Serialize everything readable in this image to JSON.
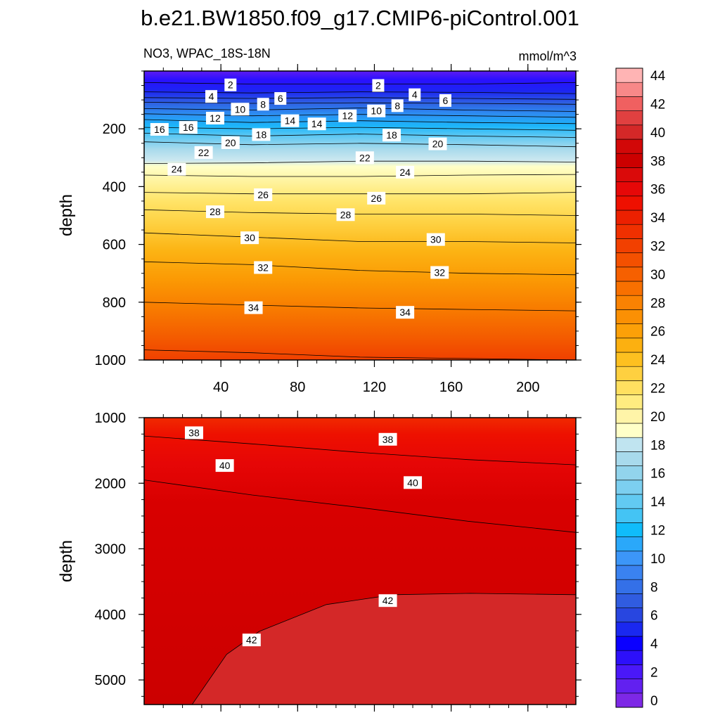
{
  "title": "b.e21.BW1850.f09_g17.CMIP6-piControl.001",
  "subtitle_left": "NO3, WPAC_18S-18N",
  "subtitle_right": "mmol/m^3",
  "chart_data": [
    {
      "type": "heatmap",
      "panel": "upper",
      "ylabel": "depth",
      "xlabel": "",
      "xlim": [
        0,
        225
      ],
      "ylim": [
        1000,
        0
      ],
      "x_ticks": [
        40,
        80,
        120,
        160,
        200
      ],
      "y_ticks": [
        200,
        400,
        600,
        800,
        1000
      ],
      "grid": false,
      "contour_levels": [
        {
          "value": 2,
          "depths": [
            40,
            45,
            45,
            45,
            40
          ]
        },
        {
          "value": 4,
          "depths": [
            72,
            76,
            72,
            74,
            78
          ]
        },
        {
          "value": 6,
          "depths": [
            92,
            95,
            92,
            95,
            98
          ]
        },
        {
          "value": 8,
          "depths": [
            108,
            112,
            110,
            112,
            115
          ]
        },
        {
          "value": 10,
          "depths": [
            130,
            135,
            128,
            135,
            140
          ]
        },
        {
          "value": 12,
          "depths": [
            148,
            155,
            150,
            155,
            160
          ]
        },
        {
          "value": 14,
          "depths": [
            168,
            178,
            172,
            178,
            182
          ]
        },
        {
          "value": 16,
          "depths": [
            195,
            200,
            195,
            200,
            205
          ]
        },
        {
          "value": 18,
          "depths": [
            215,
            225,
            218,
            225,
            230
          ]
        },
        {
          "value": 20,
          "depths": [
            245,
            255,
            250,
            255,
            262
          ]
        },
        {
          "value": 22,
          "depths": [
            320,
            318,
            312,
            312,
            315
          ]
        },
        {
          "value": 24,
          "depths": [
            360,
            365,
            365,
            360,
            358
          ]
        },
        {
          "value": 26,
          "depths": [
            420,
            425,
            425,
            425,
            420
          ]
        },
        {
          "value": 28,
          "depths": [
            480,
            490,
            495,
            495,
            500
          ]
        },
        {
          "value": 30,
          "depths": [
            560,
            575,
            590,
            590,
            595
          ]
        },
        {
          "value": 32,
          "depths": [
            660,
            670,
            690,
            700,
            705
          ]
        },
        {
          "value": 34,
          "depths": [
            800,
            810,
            820,
            825,
            830
          ]
        },
        {
          "value": 36,
          "depths": [
            965,
            975,
            990,
            995,
            1000
          ]
        }
      ],
      "labels": [
        {
          "text": "2",
          "x": 45,
          "depth": 48
        },
        {
          "text": "2",
          "x": 122,
          "depth": 50
        },
        {
          "text": "4",
          "x": 35,
          "depth": 88
        },
        {
          "text": "4",
          "x": 141,
          "depth": 82
        },
        {
          "text": "6",
          "x": 71,
          "depth": 95
        },
        {
          "text": "6",
          "x": 157,
          "depth": 102
        },
        {
          "text": "8",
          "x": 62,
          "depth": 115
        },
        {
          "text": "8",
          "x": 132,
          "depth": 120
        },
        {
          "text": "10",
          "x": 50,
          "depth": 132
        },
        {
          "text": "10",
          "x": 121,
          "depth": 138
        },
        {
          "text": "12",
          "x": 37,
          "depth": 163
        },
        {
          "text": "12",
          "x": 106,
          "depth": 155
        },
        {
          "text": "14",
          "x": 76,
          "depth": 172
        },
        {
          "text": "14",
          "x": 90,
          "depth": 183
        },
        {
          "text": "16",
          "x": 8,
          "depth": 202
        },
        {
          "text": "16",
          "x": 23,
          "depth": 195
        },
        {
          "text": "18",
          "x": 61,
          "depth": 220
        },
        {
          "text": "18",
          "x": 129,
          "depth": 222
        },
        {
          "text": "20",
          "x": 45,
          "depth": 248
        },
        {
          "text": "20",
          "x": 153,
          "depth": 252
        },
        {
          "text": "22",
          "x": 31,
          "depth": 282
        },
        {
          "text": "22",
          "x": 115,
          "depth": 300
        },
        {
          "text": "24",
          "x": 17,
          "depth": 340
        },
        {
          "text": "24",
          "x": 136,
          "depth": 350
        },
        {
          "text": "26",
          "x": 62,
          "depth": 428
        },
        {
          "text": "26",
          "x": 121,
          "depth": 440
        },
        {
          "text": "28",
          "x": 37,
          "depth": 487
        },
        {
          "text": "28",
          "x": 105,
          "depth": 497
        },
        {
          "text": "30",
          "x": 55,
          "depth": 577
        },
        {
          "text": "30",
          "x": 152,
          "depth": 583
        },
        {
          "text": "32",
          "x": 62,
          "depth": 680
        },
        {
          "text": "32",
          "x": 154,
          "depth": 697
        },
        {
          "text": "34",
          "x": 57,
          "depth": 819
        },
        {
          "text": "34",
          "x": 136,
          "depth": 835
        }
      ]
    },
    {
      "type": "heatmap",
      "panel": "lower",
      "ylabel": "depth",
      "xlabel": "",
      "xlim": [
        0,
        225
      ],
      "ylim": [
        5375,
        1000
      ],
      "x_ticks": [
        40,
        80,
        120,
        160,
        200
      ],
      "y_ticks": [
        1000,
        2000,
        3000,
        4000,
        5000
      ],
      "grid": false,
      "contour_levels": [
        {
          "value": 38,
          "depths": [
            1280,
            1400,
            1530,
            1640,
            1720
          ]
        },
        {
          "value": 40,
          "depths": [
            1950,
            2180,
            2370,
            2580,
            2750
          ]
        },
        {
          "value": 42,
          "depths": [
            5375,
            4610,
            4260,
            3850,
            3700,
            3680,
            3700
          ]
        }
      ],
      "contour_42_x": [
        25,
        43,
        60,
        95,
        130,
        170,
        225
      ],
      "labels": [
        {
          "text": "38",
          "x": 26,
          "depth": 1230
        },
        {
          "text": "38",
          "x": 127,
          "depth": 1330
        },
        {
          "text": "40",
          "x": 42,
          "depth": 1730
        },
        {
          "text": "40",
          "x": 140,
          "depth": 1990
        },
        {
          "text": "42",
          "x": 127,
          "depth": 3790
        },
        {
          "text": "42",
          "x": 56,
          "depth": 4390
        }
      ]
    }
  ],
  "colorbar": {
    "tick_labels": [
      "0",
      "2",
      "4",
      "6",
      "8",
      "10",
      "12",
      "14",
      "16",
      "18",
      "20",
      "22",
      "24",
      "26",
      "28",
      "30",
      "32",
      "34",
      "36",
      "38",
      "40",
      "42",
      "44"
    ],
    "colors": [
      "#7d28e6",
      "#6220f0",
      "#4a18f8",
      "#2d10fa",
      "#0a00ff",
      "#1a28f0",
      "#2846e0",
      "#305ce0",
      "#3470e8",
      "#3a82f0",
      "#3c96f8",
      "#2aa8fa",
      "#10bcfa",
      "#44c4f4",
      "#62caf2",
      "#7ccff0",
      "#92d4ec",
      "#a8daec",
      "#c0e4f0",
      "#ffffc8",
      "#fff4a8",
      "#ffec80",
      "#ffe060",
      "#fed040",
      "#fdc020",
      "#fcb010",
      "#fca008",
      "#fb9004",
      "#fa8202",
      "#f87000",
      "#f66000",
      "#f45000",
      "#f24000",
      "#f03000",
      "#ec2000",
      "#ee1000",
      "#e60808",
      "#da0a0a",
      "#cc0000",
      "#d20808",
      "#d42828",
      "#e04040",
      "#f06060",
      "#f88888",
      "#ffb4b4"
    ]
  }
}
